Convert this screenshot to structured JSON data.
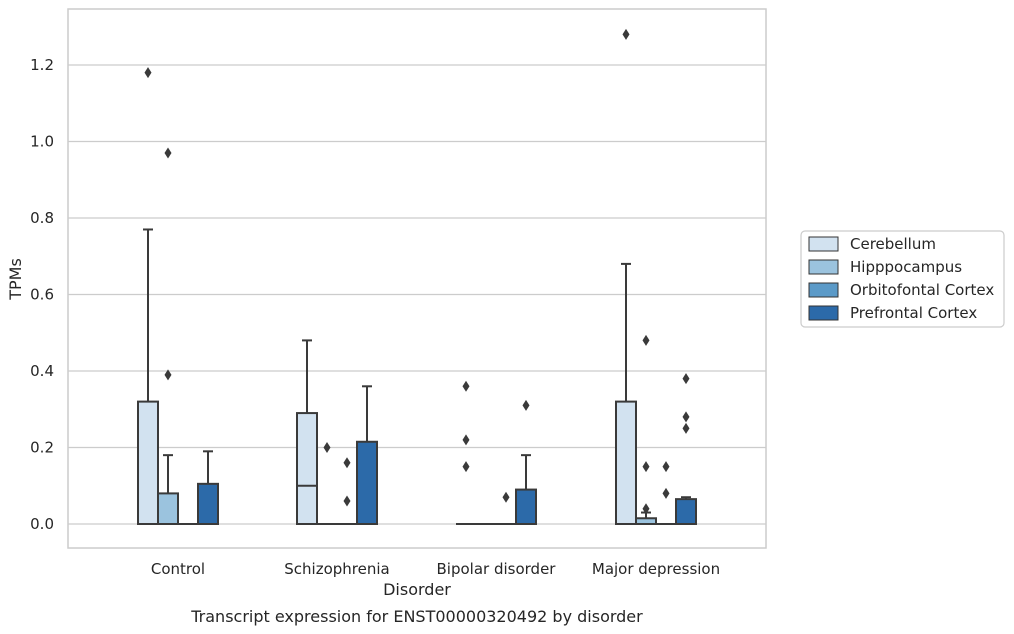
{
  "caption": "Transcript expression for ENST00000320492 by disorder",
  "chart_data": {
    "type": "box",
    "title": "",
    "xlabel": "Disorder",
    "ylabel": "TPMs",
    "ylim": [
      -0.065,
      1.35
    ],
    "yticks": [
      0.0,
      0.2,
      0.4,
      0.6,
      0.8,
      1.0,
      1.2
    ],
    "ytick_labels": [
      "0.0",
      "0.2",
      "0.4",
      "0.6",
      "0.8",
      "1.0",
      "1.2"
    ],
    "grid": true,
    "legend_position": "right",
    "categories": [
      "Control",
      "Schizophrenia",
      "Bipolar disorder",
      "Major depression"
    ],
    "series": [
      {
        "name": "Cerebellum",
        "color": "#d2e2f0",
        "boxes": [
          {
            "q1": 0.0,
            "median": 0.0,
            "q3": 0.32,
            "whisker_low": 0.0,
            "whisker_high": 0.77,
            "outliers": [
              1.18
            ]
          },
          {
            "q1": 0.0,
            "median": 0.1,
            "q3": 0.29,
            "whisker_low": 0.0,
            "whisker_high": 0.48,
            "outliers": []
          },
          {
            "q1": 0.0,
            "median": 0.0,
            "q3": 0.0,
            "whisker_low": 0.0,
            "whisker_high": 0.0,
            "outliers": [
              0.15,
              0.22,
              0.36
            ]
          },
          {
            "q1": 0.0,
            "median": 0.0,
            "q3": 0.32,
            "whisker_low": 0.0,
            "whisker_high": 0.68,
            "outliers": [
              1.28
            ]
          }
        ]
      },
      {
        "name": "Hipppocampus",
        "color": "#9bc3de",
        "boxes": [
          {
            "q1": 0.0,
            "median": 0.0,
            "q3": 0.08,
            "whisker_low": 0.0,
            "whisker_high": 0.18,
            "outliers": [
              0.39,
              0.97
            ]
          },
          {
            "q1": 0.0,
            "median": 0.0,
            "q3": 0.0,
            "whisker_low": 0.0,
            "whisker_high": 0.0,
            "outliers": [
              0.2
            ]
          },
          {
            "q1": 0.0,
            "median": 0.0,
            "q3": 0.0,
            "whisker_low": 0.0,
            "whisker_high": 0.0,
            "outliers": []
          },
          {
            "q1": 0.0,
            "median": 0.0,
            "q3": 0.015,
            "whisker_low": 0.0,
            "whisker_high": 0.03,
            "outliers": [
              0.04,
              0.15,
              0.48
            ]
          }
        ]
      },
      {
        "name": "Orbitofontal Cortex",
        "color": "#5b9ac8",
        "boxes": [
          {
            "q1": 0.0,
            "median": 0.0,
            "q3": 0.0,
            "whisker_low": 0.0,
            "whisker_high": 0.0,
            "outliers": []
          },
          {
            "q1": 0.0,
            "median": 0.0,
            "q3": 0.0,
            "whisker_low": 0.0,
            "whisker_high": 0.0,
            "outliers": [
              0.06,
              0.16
            ]
          },
          {
            "q1": 0.0,
            "median": 0.0,
            "q3": 0.0,
            "whisker_low": 0.0,
            "whisker_high": 0.0,
            "outliers": [
              0.07
            ]
          },
          {
            "q1": 0.0,
            "median": 0.0,
            "q3": 0.0,
            "whisker_low": 0.0,
            "whisker_high": 0.0,
            "outliers": [
              0.08,
              0.15
            ]
          }
        ]
      },
      {
        "name": "Prefrontal Cortex",
        "color": "#2c6aa9",
        "boxes": [
          {
            "q1": 0.0,
            "median": 0.0,
            "q3": 0.105,
            "whisker_low": 0.0,
            "whisker_high": 0.19,
            "outliers": []
          },
          {
            "q1": 0.0,
            "median": 0.0,
            "q3": 0.215,
            "whisker_low": 0.0,
            "whisker_high": 0.36,
            "outliers": []
          },
          {
            "q1": 0.0,
            "median": 0.0,
            "q3": 0.09,
            "whisker_low": 0.0,
            "whisker_high": 0.18,
            "outliers": [
              0.31
            ]
          },
          {
            "q1": 0.0,
            "median": 0.0,
            "q3": 0.065,
            "whisker_low": 0.0,
            "whisker_high": 0.07,
            "outliers": [
              0.25,
              0.28,
              0.38
            ]
          }
        ]
      }
    ]
  }
}
